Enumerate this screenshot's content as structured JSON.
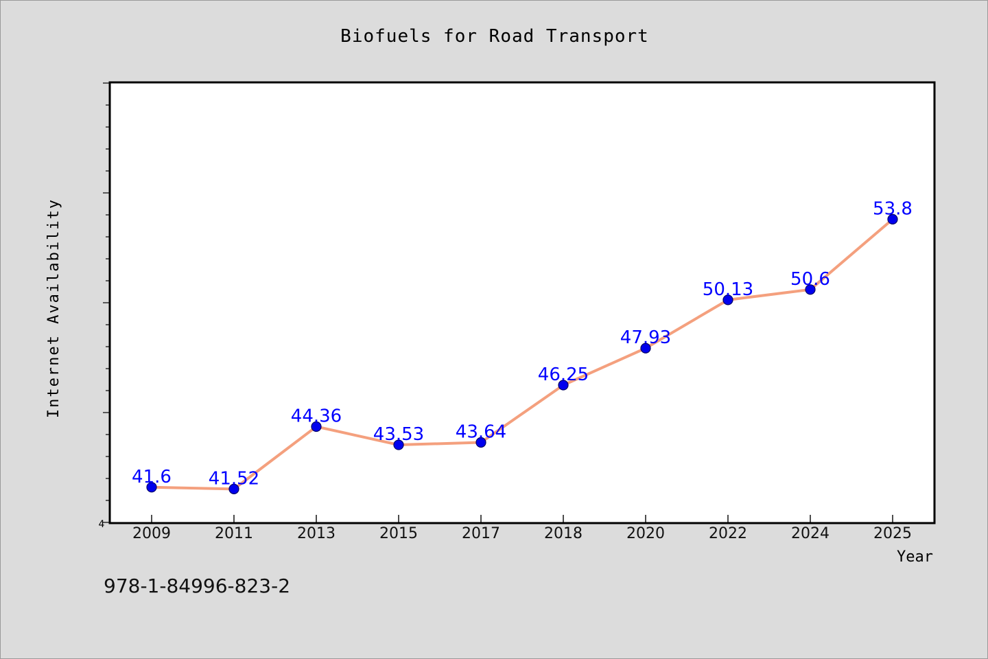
{
  "chart_data": {
    "type": "line",
    "title": "Biofuels for Road Transport",
    "xlabel": "Year",
    "ylabel": "Internet Availability",
    "categories": [
      "2009",
      "2011",
      "2013",
      "2015",
      "2017",
      "2018",
      "2020",
      "2022",
      "2024",
      "2025"
    ],
    "series": [
      {
        "values": [
          41.6,
          41.52,
          44.36,
          43.53,
          43.64,
          46.25,
          47.93,
          50.13,
          50.6,
          53.8
        ],
        "data_labels": [
          "41.6",
          "41.52",
          "44.36",
          "43.53",
          "43.64",
          "46.25",
          "47.93",
          "50.13",
          "50.6",
          "53.8"
        ]
      }
    ],
    "ylim": [
      40,
      60
    ],
    "y_tick_labels": [
      "4"
    ],
    "grid": false,
    "legend": "none",
    "line_color": "#f4a07e",
    "marker_color": "#0000ee",
    "label_color": "#0000ff"
  },
  "footer": {
    "isbn": "978-1-84996-823-2"
  }
}
